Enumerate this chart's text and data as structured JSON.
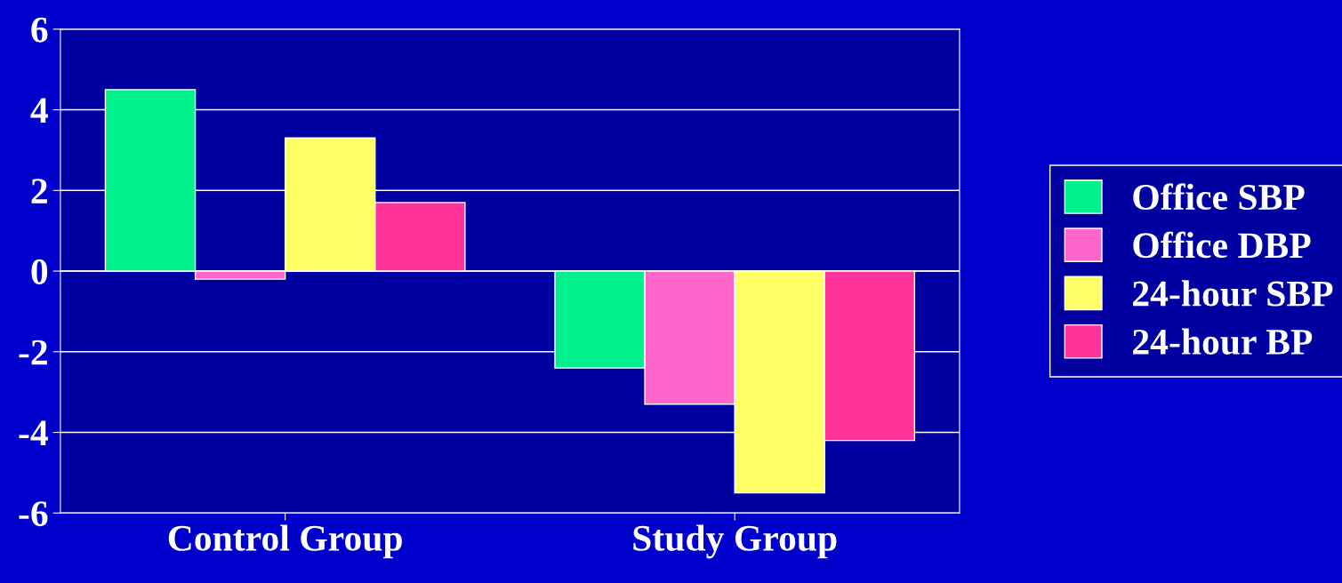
{
  "chart_data": {
    "type": "bar",
    "categories": [
      "Control Group",
      "Study Group"
    ],
    "series": [
      {
        "name": "Office SBP",
        "color": "#00f08c",
        "values": [
          4.5,
          -2.4
        ]
      },
      {
        "name": "Office DBP",
        "color": "#ff66cc",
        "values": [
          -0.2,
          -3.3
        ]
      },
      {
        "name": "24-hour SBP",
        "color": "#ffff66",
        "values": [
          3.3,
          -5.5
        ]
      },
      {
        "name": "24-hour BP",
        "color": "#ff3399",
        "values": [
          1.7,
          -4.2
        ]
      }
    ],
    "ylim": [
      -6,
      6
    ],
    "yticks": [
      -6,
      -4,
      -2,
      0,
      2,
      4,
      6
    ],
    "grid": "y",
    "legend": "right"
  }
}
